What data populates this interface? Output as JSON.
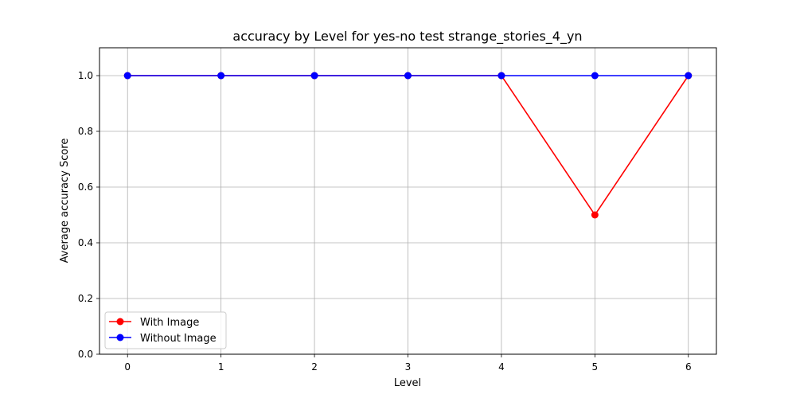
{
  "chart_data": {
    "type": "line",
    "title": "accuracy by Level for yes-no test strange_stories_4_yn",
    "xlabel": "Level",
    "ylabel": "Average accuracy Score",
    "x": [
      0,
      1,
      2,
      3,
      4,
      5,
      6
    ],
    "xlim": [
      -0.3,
      6.3
    ],
    "ylim": [
      0.0,
      1.1
    ],
    "xticks": [
      "0",
      "1",
      "2",
      "3",
      "4",
      "5",
      "6"
    ],
    "yticks": [
      "0.0",
      "0.2",
      "0.4",
      "0.6",
      "0.8",
      "1.0"
    ],
    "grid": true,
    "legend_position": "lower-left",
    "series": [
      {
        "name": "With Image",
        "color": "#ff0000",
        "values": [
          1.0,
          1.0,
          1.0,
          1.0,
          1.0,
          0.5,
          1.0
        ]
      },
      {
        "name": "Without Image",
        "color": "#0000ff",
        "values": [
          1.0,
          1.0,
          1.0,
          1.0,
          1.0,
          1.0,
          1.0
        ]
      }
    ]
  }
}
